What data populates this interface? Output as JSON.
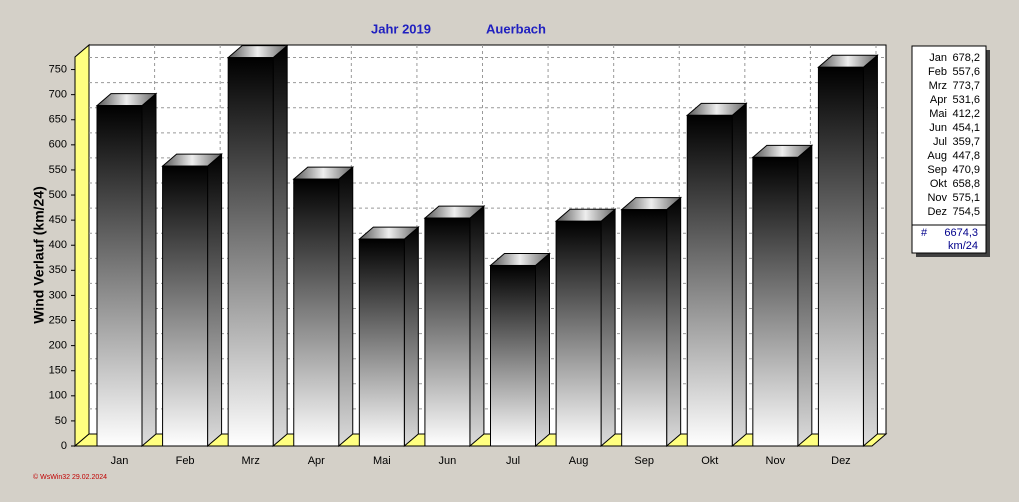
{
  "chart_data": {
    "type": "bar3d",
    "title": "Jahr  2019",
    "subtitle": "Auerbach",
    "y_label": "Wind Verlauf  (km/24)",
    "categories": [
      "Jan",
      "Feb",
      "Mrz",
      "Apr",
      "Mai",
      "Jun",
      "Jul",
      "Aug",
      "Sep",
      "Okt",
      "Nov",
      "Dez"
    ],
    "values": [
      678.2,
      557.6,
      773.7,
      531.6,
      412.2,
      454.1,
      359.7,
      447.8,
      470.9,
      658.8,
      575.1,
      754.5
    ],
    "value_labels": [
      "678,2",
      "557,6",
      "773,7",
      "531,6",
      "412,2",
      "454,1",
      "359,7",
      "447,8",
      "470,9",
      "658,8",
      "575,1",
      "754,5"
    ],
    "ylim": [
      0,
      775
    ],
    "yticks": [
      0,
      50,
      100,
      150,
      200,
      250,
      300,
      350,
      400,
      450,
      500,
      550,
      600,
      650,
      700,
      750
    ],
    "grid": true,
    "wall_color": "#ffff80",
    "legend_symbol": "#",
    "total": {
      "value": 6674.3,
      "label": "6674,3"
    },
    "unit": "km/24",
    "footer": "© WsWin32  29.02.2024"
  }
}
